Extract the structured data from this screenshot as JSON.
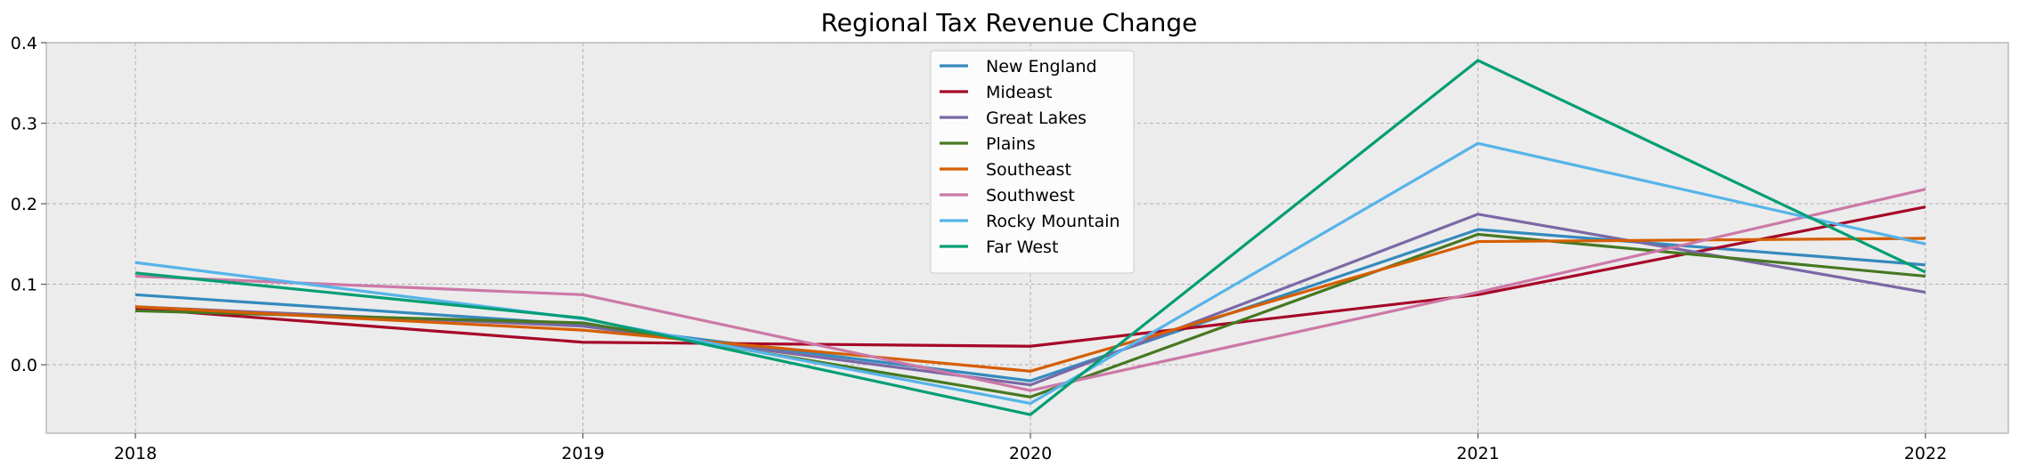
{
  "chart_data": {
    "type": "line",
    "title": "Regional Tax Revenue Change",
    "xlabel": "",
    "ylabel": "",
    "categories": [
      "2018",
      "2019",
      "2020",
      "2021",
      "2022"
    ],
    "yticks": [
      "0.0",
      "0.1",
      "0.2",
      "0.3",
      "0.4"
    ],
    "ylim": [
      -0.085,
      0.4
    ],
    "grid": true,
    "legend_position": "top-center",
    "background": "#ececec",
    "series": [
      {
        "name": "New England",
        "color": "#348ABD",
        "values": [
          0.087,
          0.05,
          -0.02,
          0.168,
          0.124
        ]
      },
      {
        "name": "Mideast",
        "color": "#A60628",
        "values": [
          0.07,
          0.028,
          0.023,
          0.087,
          0.196
        ]
      },
      {
        "name": "Great Lakes",
        "color": "#7A68A6",
        "values": [
          0.072,
          0.048,
          -0.025,
          0.187,
          0.09
        ]
      },
      {
        "name": "Plains",
        "color": "#467821",
        "values": [
          0.067,
          0.052,
          -0.04,
          0.162,
          0.11
        ]
      },
      {
        "name": "Southeast",
        "color": "#D55E00",
        "values": [
          0.072,
          0.043,
          -0.008,
          0.153,
          0.157
        ]
      },
      {
        "name": "Southwest",
        "color": "#CC79A7",
        "values": [
          0.11,
          0.087,
          -0.032,
          0.09,
          0.218
        ]
      },
      {
        "name": "Rocky Mountain",
        "color": "#56B4E9",
        "values": [
          0.127,
          0.057,
          -0.048,
          0.275,
          0.15
        ]
      },
      {
        "name": "Far West",
        "color": "#009E73",
        "values": [
          0.114,
          0.058,
          -0.062,
          0.378,
          0.115
        ]
      }
    ]
  }
}
